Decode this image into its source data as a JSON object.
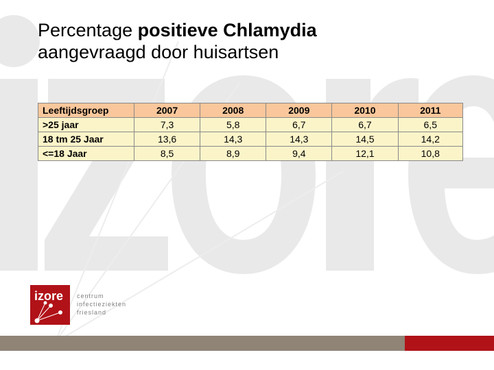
{
  "title": {
    "part1": "Percentage ",
    "bold": "positieve Chlamydia",
    "part2": "aangevraagd door huisartsen"
  },
  "table": {
    "header_bg": "#f9c79b",
    "body_bg": "#fcf4c9",
    "border_color": "#888888",
    "header_label": "Leeftijdsgroep",
    "columns": [
      "2007",
      "2008",
      "2009",
      "2010",
      "2011"
    ],
    "rows": [
      {
        "label": ">25 jaar",
        "values": [
          "7,3",
          "5,8",
          "6,7",
          "6,7",
          "6,5"
        ]
      },
      {
        "label": "18 tm 25 Jaar",
        "values": [
          "13,6",
          "14,3",
          "14,3",
          "14,5",
          "14,2"
        ]
      },
      {
        "label": "<=18 Jaar",
        "values": [
          "8,5",
          "8,9",
          "9,4",
          "12,1",
          "10,8"
        ]
      }
    ],
    "col_label_width": 140
  },
  "watermark": {
    "stroke": "#e9e9e9",
    "stroke_width": 4,
    "fill": "#e9e9e9"
  },
  "logo": {
    "bg": "#b01218",
    "text": "izore",
    "sub1": "centrum",
    "sub2": "infectieziekten",
    "sub3": "friesland"
  },
  "footer": {
    "gray": "#8f8476",
    "red": "#b01218",
    "gray_width": 590,
    "red_width": 130
  }
}
